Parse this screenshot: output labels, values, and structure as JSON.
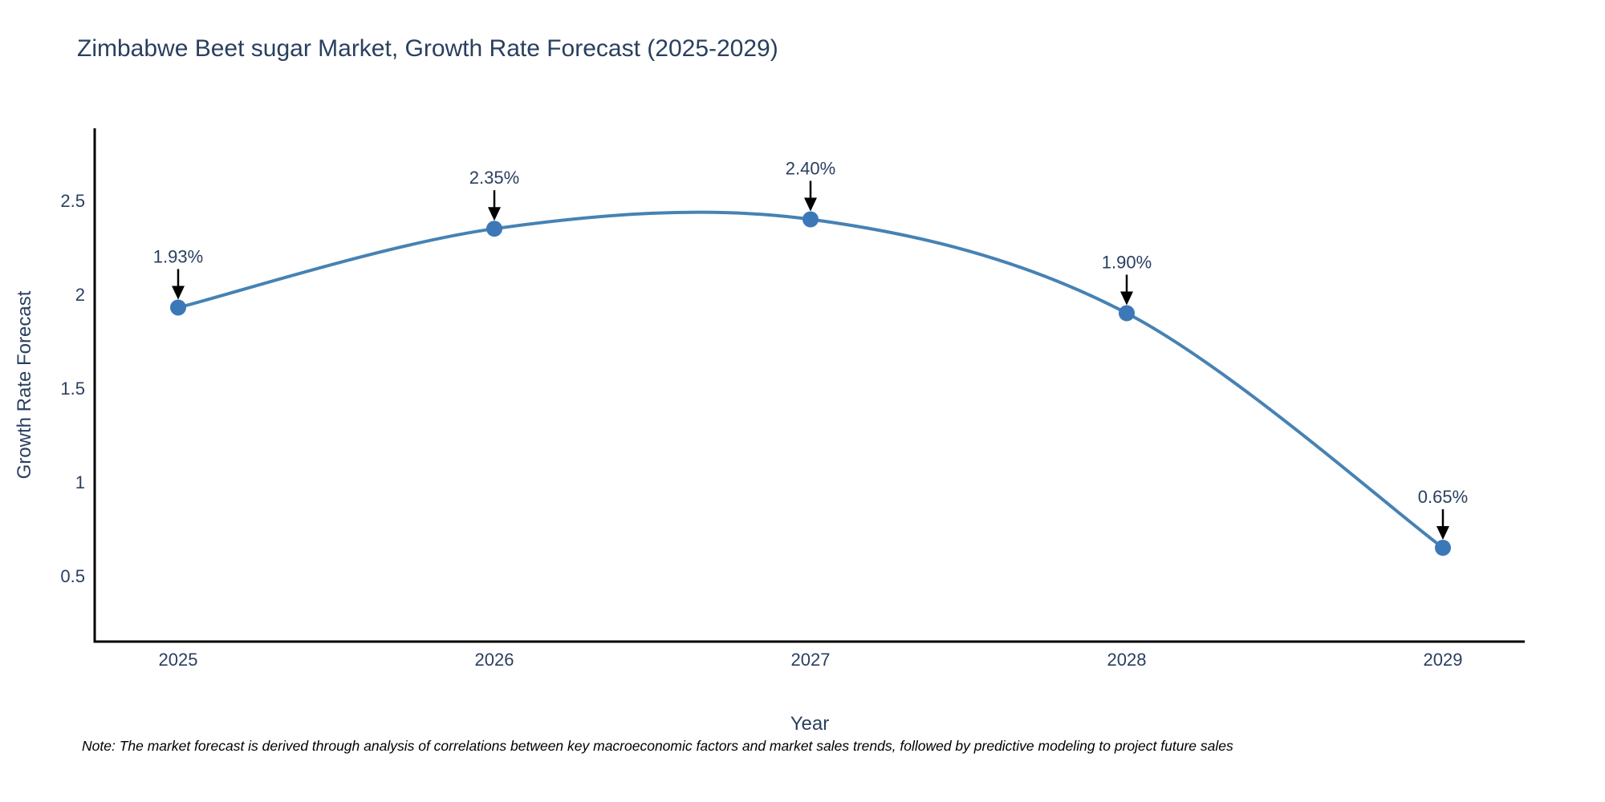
{
  "title": {
    "text": "Zimbabwe Beet sugar Market, Growth Rate Forecast (2025-2029)",
    "color": "#2a3f5f"
  },
  "note": {
    "text": "Note: The market forecast is derived through analysis of correlations between key macroeconomic factors and market sales trends, followed by predictive modeling to project future sales"
  },
  "chart_data": {
    "type": "line",
    "title": "Zimbabwe Beet sugar Market, Growth Rate Forecast (2025-2029)",
    "categories": [
      "2025",
      "2026",
      "2027",
      "2028",
      "2029"
    ],
    "values": [
      1.93,
      2.35,
      2.4,
      1.9,
      0.65
    ],
    "point_labels": [
      "1.93%",
      "2.35%",
      "2.40%",
      "1.90%",
      "0.65%"
    ],
    "xlabel": "Year",
    "ylabel": "Growth Rate Forecast",
    "ytick_labels": [
      "0.5",
      "1",
      "1.5",
      "2",
      "2.5"
    ],
    "yticks": [
      0.5,
      1,
      1.5,
      2,
      2.5
    ],
    "ylim": [
      0.15,
      2.885
    ],
    "line_shape": "spline",
    "grid": false,
    "legend": "none",
    "colors": {
      "line": "#4682b4",
      "marker": "#3c78b8",
      "axis_line": "#000000",
      "tick_text": "#2a3f5f",
      "axis_title_text": "#2a3f5f",
      "annotation_text": "#2a3f5f",
      "annotation_arrow": "#000000"
    }
  }
}
